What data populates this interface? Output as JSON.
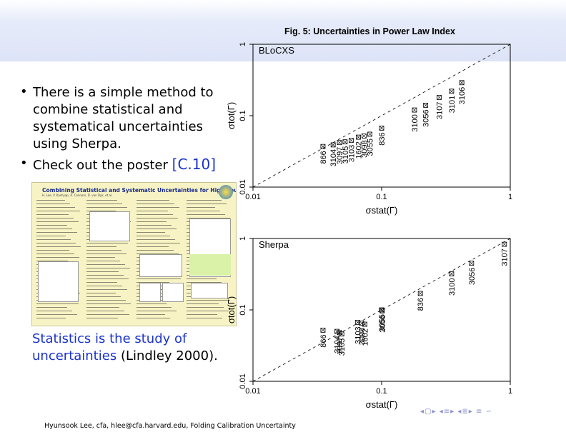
{
  "slide": {
    "bullets": [
      "There is a simple method to combine statistical and systematical uncertainties using Sherpa.",
      "Check out the poster"
    ],
    "poster_ref": "[C.10]",
    "quote_text": "Statistics is the study of uncertainties",
    "quote_author": "(Lindley 2000).",
    "footer": "Hyunsook Lee, cfa, hlee@cfa.harvard.edu, Folding Calibration Uncertainty",
    "nav_icons": [
      "nav-prev-frame-icon",
      "nav-next-frame-icon",
      "nav-prev-section-icon",
      "nav-next-section-icon",
      "nav-prev-subsection-icon",
      "nav-next-subsection-icon",
      "nav-align-icon",
      "nav-search-icon"
    ]
  },
  "poster": {
    "title": "Combining Statistical and Systematic Uncertainties for High Count Spectra",
    "authors": "H. Lee, V. Kashyap, A. Connors, D. van Dyk, et al."
  },
  "figure_title": "Fig. 5: Uncertainties in Power Law Index",
  "chart_data": [
    {
      "type": "scatter",
      "panel_label": "BLoCXS",
      "xlabel": "σstat(Γ)",
      "ylabel": "σtot(Γ)",
      "xscale": "log",
      "yscale": "log",
      "xlim": [
        0.01,
        1
      ],
      "ylim": [
        0.01,
        1
      ],
      "xticks": [
        "0.01",
        "0.1",
        "1"
      ],
      "yticks": [
        "0.01",
        "0.1",
        "1"
      ],
      "reference_line": "y = x (dashed)",
      "points": [
        {
          "label": "866",
          "x": 0.035,
          "y": 0.037
        },
        {
          "label": "3104",
          "x": 0.042,
          "y": 0.039
        },
        {
          "label": "3097",
          "x": 0.047,
          "y": 0.042
        },
        {
          "label": "3105",
          "x": 0.052,
          "y": 0.043
        },
        {
          "label": "3103",
          "x": 0.058,
          "y": 0.045
        },
        {
          "label": "1602",
          "x": 0.066,
          "y": 0.05
        },
        {
          "label": "3098",
          "x": 0.073,
          "y": 0.052
        },
        {
          "label": "3055",
          "x": 0.081,
          "y": 0.055
        },
        {
          "label": "836",
          "x": 0.1,
          "y": 0.067
        },
        {
          "label": "3100",
          "x": 0.18,
          "y": 0.12
        },
        {
          "label": "3056",
          "x": 0.22,
          "y": 0.14
        },
        {
          "label": "3107",
          "x": 0.28,
          "y": 0.18
        },
        {
          "label": "3101",
          "x": 0.35,
          "y": 0.22
        },
        {
          "label": "3106",
          "x": 0.42,
          "y": 0.29
        }
      ]
    },
    {
      "type": "scatter",
      "panel_label": "Sherpa",
      "xlabel": "σstat(Γ)",
      "ylabel": "σtot(Γ)",
      "xscale": "log",
      "yscale": "log",
      "xlim": [
        0.01,
        1
      ],
      "ylim": [
        0.01,
        1
      ],
      "xticks": [
        "0.01",
        "0.1",
        "1"
      ],
      "yticks": [
        "0.01",
        "0.1",
        "1"
      ],
      "reference_line": "y = x (dashed)",
      "points": [
        {
          "label": "866",
          "x": 0.035,
          "y": 0.052
        },
        {
          "label": "3104",
          "x": 0.045,
          "y": 0.05
        },
        {
          "label": "3097",
          "x": 0.047,
          "y": 0.048
        },
        {
          "label": "3105",
          "x": 0.049,
          "y": 0.046
        },
        {
          "label": "3103",
          "x": 0.065,
          "y": 0.067
        },
        {
          "label": "3098",
          "x": 0.07,
          "y": 0.065
        },
        {
          "label": "1602",
          "x": 0.074,
          "y": 0.063
        },
        {
          "label": "3055",
          "x": 0.1,
          "y": 0.1
        },
        {
          "label": "3056",
          "x": 0.101,
          "y": 0.097
        },
        {
          "label": "836",
          "x": 0.2,
          "y": 0.17
        },
        {
          "label": "3100",
          "x": 0.35,
          "y": 0.32
        },
        {
          "label": "3056",
          "x": 0.5,
          "y": 0.45
        },
        {
          "label": "3107",
          "x": 0.9,
          "y": 0.83
        }
      ]
    }
  ]
}
